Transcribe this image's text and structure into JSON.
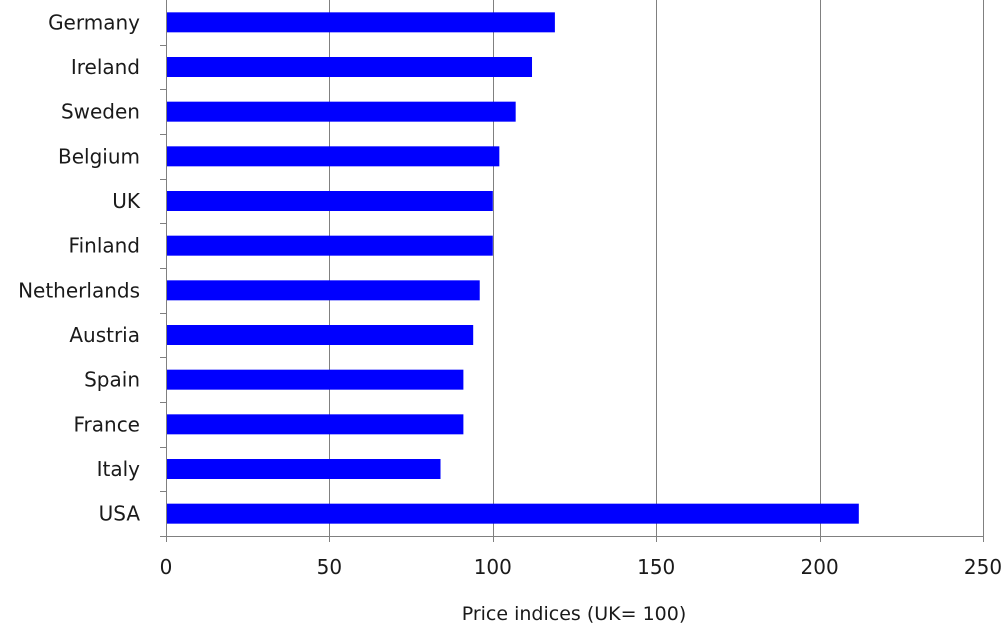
{
  "chart_data": {
    "type": "bar",
    "orientation": "horizontal",
    "categories": [
      "Germany",
      "Ireland",
      "Sweden",
      "Belgium",
      "UK",
      "Finland",
      "Netherlands",
      "Austria",
      "Spain",
      "France",
      "Italy",
      "USA"
    ],
    "values": [
      119,
      112,
      107,
      102,
      100,
      100,
      96,
      94,
      91,
      91,
      84,
      212
    ],
    "xlabel": "Price indices (UK= 100)",
    "ylabel": "",
    "xlim": [
      0,
      250
    ],
    "x_ticks": [
      0,
      50,
      100,
      150,
      200,
      250
    ],
    "grid": "vertical",
    "legend": "none",
    "bar_color": "#0000ff",
    "grid_color": "#808080"
  }
}
